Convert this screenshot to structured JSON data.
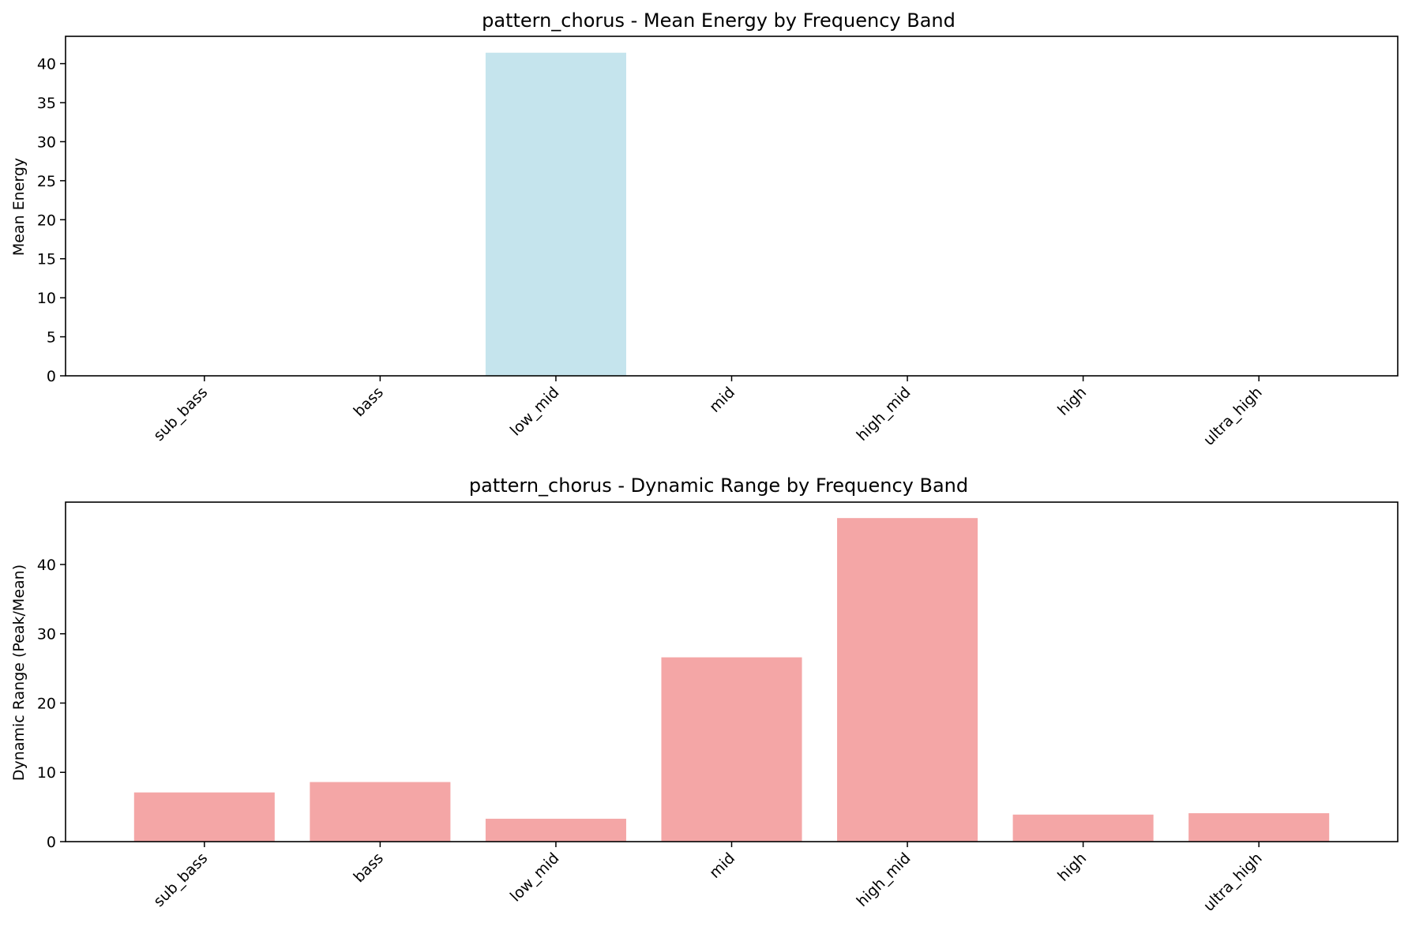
{
  "chart_data": [
    {
      "type": "bar",
      "title": "pattern_chorus - Mean Energy by Frequency Band",
      "xlabel": "",
      "ylabel": "Mean Energy",
      "categories": [
        "sub_bass",
        "bass",
        "low_mid",
        "mid",
        "high_mid",
        "high",
        "ultra_high"
      ],
      "values": [
        0,
        0,
        41.4,
        0,
        0,
        0,
        0
      ],
      "ylim": [
        0,
        43.5
      ],
      "yticks": [
        0,
        5,
        10,
        15,
        20,
        25,
        30,
        35,
        40
      ],
      "color": "#add8e6",
      "grid": false,
      "legend": "none"
    },
    {
      "type": "bar",
      "title": "pattern_chorus - Dynamic Range by Frequency Band",
      "xlabel": "",
      "ylabel": "Dynamic Range (Peak/Mean)",
      "categories": [
        "sub_bass",
        "bass",
        "low_mid",
        "mid",
        "high_mid",
        "high",
        "ultra_high"
      ],
      "values": [
        7.1,
        8.6,
        3.3,
        26.6,
        46.7,
        3.9,
        4.1
      ],
      "ylim": [
        0,
        49
      ],
      "yticks": [
        0,
        10,
        20,
        30,
        40
      ],
      "color": "#f08080",
      "grid": false,
      "legend": "none"
    }
  ]
}
